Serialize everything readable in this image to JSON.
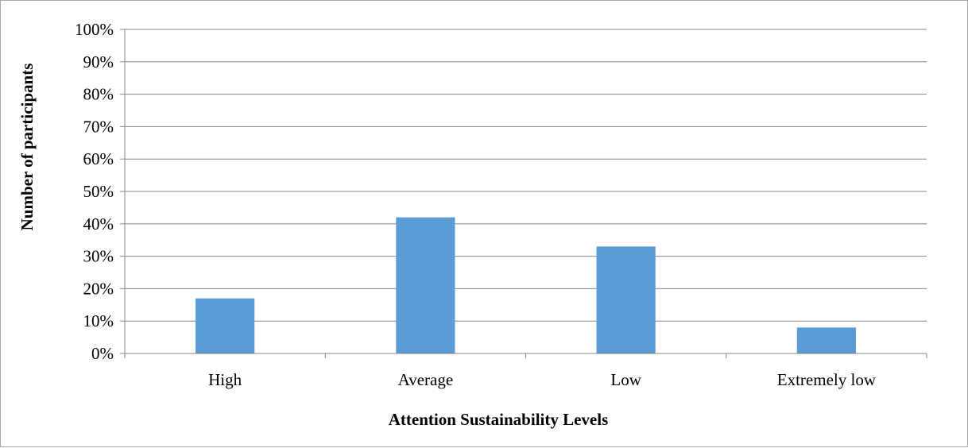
{
  "chart_data": {
    "type": "bar",
    "categories": [
      "High",
      "Average",
      "Low",
      "Extremely low"
    ],
    "series": [
      {
        "values": [
          17,
          42,
          33,
          8
        ]
      }
    ],
    "xlabel": "Attention Sustainability Levels",
    "ylabel": "Number of participants",
    "ylim": [
      0,
      100
    ],
    "yticks": [
      "0%",
      "10%",
      "20%",
      "30%",
      "40%",
      "50%",
      "60%",
      "70%",
      "80%",
      "90%",
      "100%"
    ],
    "bar_color": "#5b9bd5",
    "grid": true,
    "legend": "none"
  }
}
